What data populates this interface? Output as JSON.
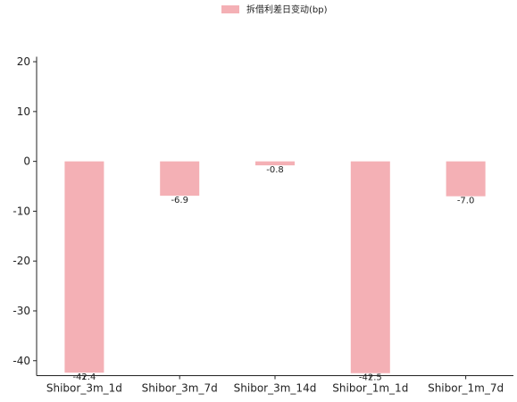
{
  "chart_data": {
    "type": "bar",
    "categories": [
      "Shibor_3m_1d",
      "Shibor_3m_7d",
      "Shibor_3m_14d",
      "Shibor_1m_1d",
      "Shibor_1m_7d"
    ],
    "series": [
      {
        "name": "拆借利差日变动(bp)",
        "values": [
          -42.4,
          -6.9,
          -0.8,
          -42.5,
          -7.0
        ],
        "labels": [
          "-42.4",
          "-6.9",
          "-0.8",
          "-42.5",
          "-7.0"
        ],
        "color": "#f4b0b5"
      }
    ],
    "yticks": [
      20,
      10,
      0,
      -10,
      -20,
      -30,
      -40
    ],
    "ylim": [
      -43,
      21
    ],
    "grid": false,
    "legend": "top-center"
  }
}
